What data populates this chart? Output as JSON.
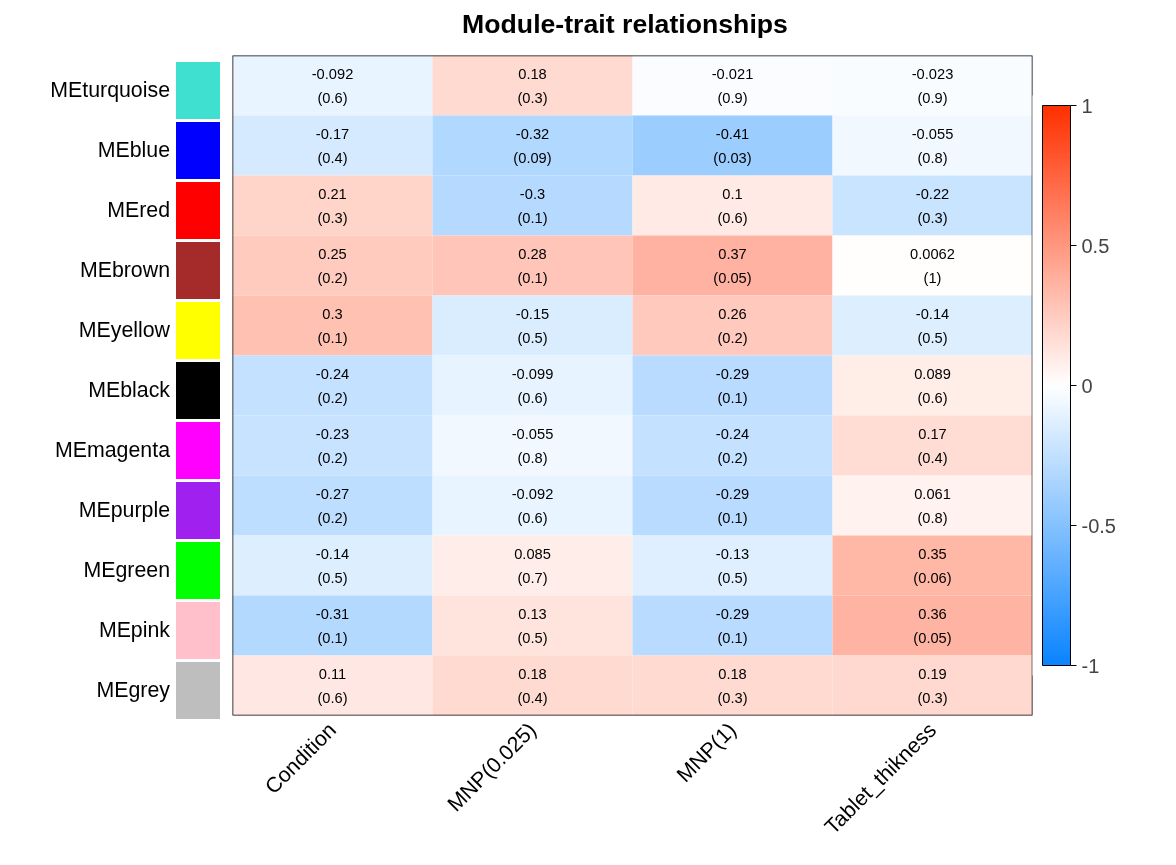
{
  "chart_data": {
    "type": "heatmap",
    "title": "Module-trait relationships",
    "categories": [
      "Condition",
      "MNP(0.025)",
      "MNP(1)",
      "Tablet_thikness"
    ],
    "y_categories": [
      "MEturquoise",
      "MEblue",
      "MEred",
      "MEbrown",
      "MEyellow",
      "MEblack",
      "MEmagenta",
      "MEpurple",
      "MEgreen",
      "MEpink",
      "MEgrey"
    ],
    "colors": [
      "#40e0d0",
      "#0000ff",
      "#ff0000",
      "#a52a2a",
      "#ffff00",
      "#000000",
      "#ff00ff",
      "#a020f0",
      "#00ff00",
      "#ffc0cb",
      "#bebebe"
    ],
    "cells": [
      [
        -0.092,
        0.18,
        -0.021,
        -0.023
      ],
      [
        -0.17,
        -0.32,
        -0.41,
        -0.055
      ],
      [
        0.21,
        -0.3,
        0.1,
        -0.22
      ],
      [
        0.25,
        0.28,
        0.37,
        0.0062
      ],
      [
        0.3,
        -0.15,
        0.26,
        -0.14
      ],
      [
        -0.24,
        -0.099,
        -0.29,
        0.089
      ],
      [
        -0.23,
        -0.055,
        -0.24,
        0.17
      ],
      [
        -0.27,
        -0.092,
        -0.29,
        0.061
      ],
      [
        -0.14,
        0.085,
        -0.13,
        0.35
      ],
      [
        -0.31,
        0.13,
        -0.29,
        0.36
      ],
      [
        0.11,
        0.18,
        0.18,
        0.19
      ]
    ],
    "cell_labels": [
      [
        "-0.092\n(0.6)",
        "0.18\n(0.3)",
        "-0.021\n(0.9)",
        "-0.023\n(0.9)"
      ],
      [
        "-0.17\n(0.4)",
        "-0.32\n(0.09)",
        "-0.41\n(0.03)",
        "-0.055\n(0.8)"
      ],
      [
        "0.21\n(0.3)",
        "-0.3\n(0.1)",
        "0.1\n(0.6)",
        "-0.22\n(0.3)"
      ],
      [
        "0.25\n(0.2)",
        "0.28\n(0.1)",
        "0.37\n(0.05)",
        "0.0062\n(1)"
      ],
      [
        "0.3\n(0.1)",
        "-0.15\n(0.5)",
        "0.26\n(0.2)",
        "-0.14\n(0.5)"
      ],
      [
        "-0.24\n(0.2)",
        "-0.099\n(0.6)",
        "-0.29\n(0.1)",
        "0.089\n(0.6)"
      ],
      [
        "-0.23\n(0.2)",
        "-0.055\n(0.8)",
        "-0.24\n(0.2)",
        "0.17\n(0.4)"
      ],
      [
        "-0.27\n(0.2)",
        "-0.092\n(0.6)",
        "-0.29\n(0.1)",
        "0.061\n(0.8)"
      ],
      [
        "-0.14\n(0.5)",
        "0.085\n(0.7)",
        "-0.13\n(0.5)",
        "0.35\n(0.06)"
      ],
      [
        "-0.31\n(0.1)",
        "0.13\n(0.5)",
        "-0.29\n(0.1)",
        "0.36\n(0.05)"
      ],
      [
        "0.11\n(0.6)",
        "0.18\n(0.4)",
        "0.18\n(0.3)",
        "0.19\n(0.3)"
      ]
    ],
    "clim": [
      -1,
      1
    ],
    "cticks": [
      -1,
      -0.5,
      0,
      0.5,
      1
    ]
  }
}
